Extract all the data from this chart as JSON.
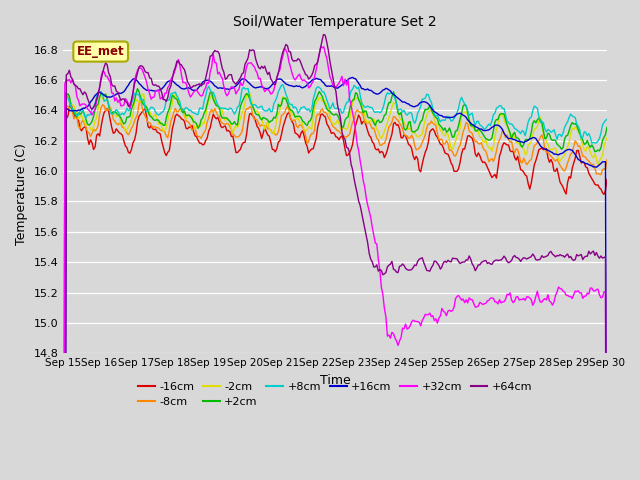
{
  "title": "Soil/Water Temperature Set 2",
  "xlabel": "Time",
  "ylabel": "Temperature (C)",
  "ylim": [
    14.8,
    16.9
  ],
  "x_tick_labels": [
    "Sep 15",
    "Sep 16",
    "Sep 17",
    "Sep 18",
    "Sep 19",
    "Sep 20",
    "Sep 21",
    "Sep 22",
    "Sep 23",
    "Sep 24",
    "Sep 25",
    "Sep 26",
    "Sep 27",
    "Sep 28",
    "Sep 29",
    "Sep 30"
  ],
  "series_labels": [
    "-16cm",
    "-8cm",
    "-2cm",
    "+2cm",
    "+8cm",
    "+16cm",
    "+32cm",
    "+64cm"
  ],
  "series_colors": [
    "#dd0000",
    "#ff8800",
    "#dddd00",
    "#00bb00",
    "#00cccc",
    "#0000cc",
    "#ff00ff",
    "#880088"
  ],
  "annotation_text": "EE_met",
  "fig_bg_color": "#d8d8d8",
  "plot_bg_color": "#d8d8d8"
}
